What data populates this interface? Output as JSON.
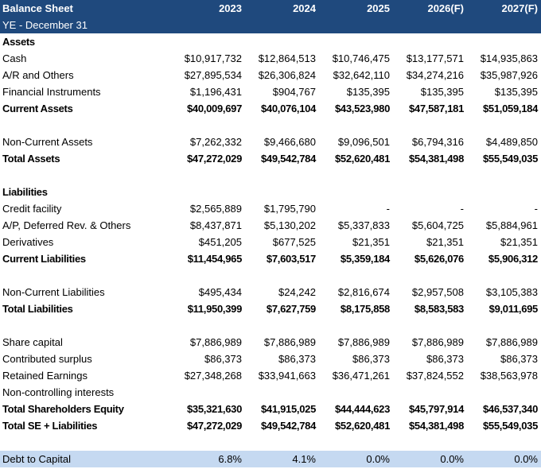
{
  "header": {
    "title": "Balance Sheet",
    "subtitle": "YE - December 31",
    "columns": [
      "2023",
      "2024",
      "2025",
      "2026(F)",
      "2027(F)"
    ]
  },
  "colors": {
    "header_bg": "#1f497d",
    "header_text": "#ffffff",
    "ratio_bg": "#c5d9f1"
  },
  "rows": [
    {
      "type": "section",
      "label": "Assets",
      "values": []
    },
    {
      "type": "normal",
      "label": "Cash",
      "values": [
        "$10,917,732",
        "$12,864,513",
        "$10,746,475",
        "$13,177,571",
        "$14,935,863"
      ]
    },
    {
      "type": "normal",
      "label": "A/R and Others",
      "values": [
        "$27,895,534",
        "$26,306,824",
        "$32,642,110",
        "$34,274,216",
        "$35,987,926"
      ]
    },
    {
      "type": "normal",
      "label": "Financial Instruments",
      "values": [
        "$1,196,431",
        "$904,767",
        "$135,395",
        "$135,395",
        "$135,395"
      ]
    },
    {
      "type": "bold",
      "label": "Current Assets",
      "values": [
        "$40,009,697",
        "$40,076,104",
        "$43,523,980",
        "$47,587,181",
        "$51,059,184"
      ]
    },
    {
      "type": "blank",
      "label": "",
      "values": []
    },
    {
      "type": "normal",
      "label": "Non-Current Assets",
      "values": [
        "$7,262,332",
        "$9,466,680",
        "$9,096,501",
        "$6,794,316",
        "$4,489,850"
      ]
    },
    {
      "type": "bold",
      "label": "Total Assets",
      "values": [
        "$47,272,029",
        "$49,542,784",
        "$52,620,481",
        "$54,381,498",
        "$55,549,035"
      ]
    },
    {
      "type": "blank",
      "label": "",
      "values": []
    },
    {
      "type": "section",
      "label": "Liabilities",
      "values": []
    },
    {
      "type": "normal",
      "label": "Credit facility",
      "values": [
        "$2,565,889",
        "$1,795,790",
        "-",
        "-",
        "-"
      ]
    },
    {
      "type": "normal",
      "label": "A/P, Deferred Rev. & Others",
      "values": [
        "$8,437,871",
        "$5,130,202",
        "$5,337,833",
        "$5,604,725",
        "$5,884,961"
      ]
    },
    {
      "type": "normal",
      "label": "Derivatives",
      "values": [
        "$451,205",
        "$677,525",
        "$21,351",
        "$21,351",
        "$21,351"
      ]
    },
    {
      "type": "bold",
      "label": "Current Liabilities",
      "values": [
        "$11,454,965",
        "$7,603,517",
        "$5,359,184",
        "$5,626,076",
        "$5,906,312"
      ]
    },
    {
      "type": "blank",
      "label": "",
      "values": []
    },
    {
      "type": "normal",
      "label": "Non-Current Liabilities",
      "values": [
        "$495,434",
        "$24,242",
        "$2,816,674",
        "$2,957,508",
        "$3,105,383"
      ]
    },
    {
      "type": "bold",
      "label": "Total Liabilities",
      "values": [
        "$11,950,399",
        "$7,627,759",
        "$8,175,858",
        "$8,583,583",
        "$9,011,695"
      ]
    },
    {
      "type": "blank",
      "label": "",
      "values": []
    },
    {
      "type": "normal",
      "label": "Share capital",
      "values": [
        "$7,886,989",
        "$7,886,989",
        "$7,886,989",
        "$7,886,989",
        "$7,886,989"
      ]
    },
    {
      "type": "normal",
      "label": "Contributed surplus",
      "values": [
        "$86,373",
        "$86,373",
        "$86,373",
        "$86,373",
        "$86,373"
      ]
    },
    {
      "type": "normal",
      "label": "Retained Earnings",
      "values": [
        "$27,348,268",
        "$33,941,663",
        "$36,471,261",
        "$37,824,552",
        "$38,563,978"
      ]
    },
    {
      "type": "normal",
      "label": "Non-controlling interests",
      "values": []
    },
    {
      "type": "bold",
      "label": "Total Shareholders Equity",
      "values": [
        "$35,321,630",
        "$41,915,025",
        "$44,444,623",
        "$45,797,914",
        "$46,537,340"
      ]
    },
    {
      "type": "bold",
      "label": "Total SE + Liabilities",
      "values": [
        "$47,272,029",
        "$49,542,784",
        "$52,620,481",
        "$54,381,498",
        "$55,549,035"
      ]
    },
    {
      "type": "blank",
      "label": "",
      "values": []
    },
    {
      "type": "ratio",
      "label": "Debt to Capital",
      "values": [
        "6.8%",
        "4.1%",
        "0.0%",
        "0.0%",
        "0.0%"
      ]
    }
  ]
}
